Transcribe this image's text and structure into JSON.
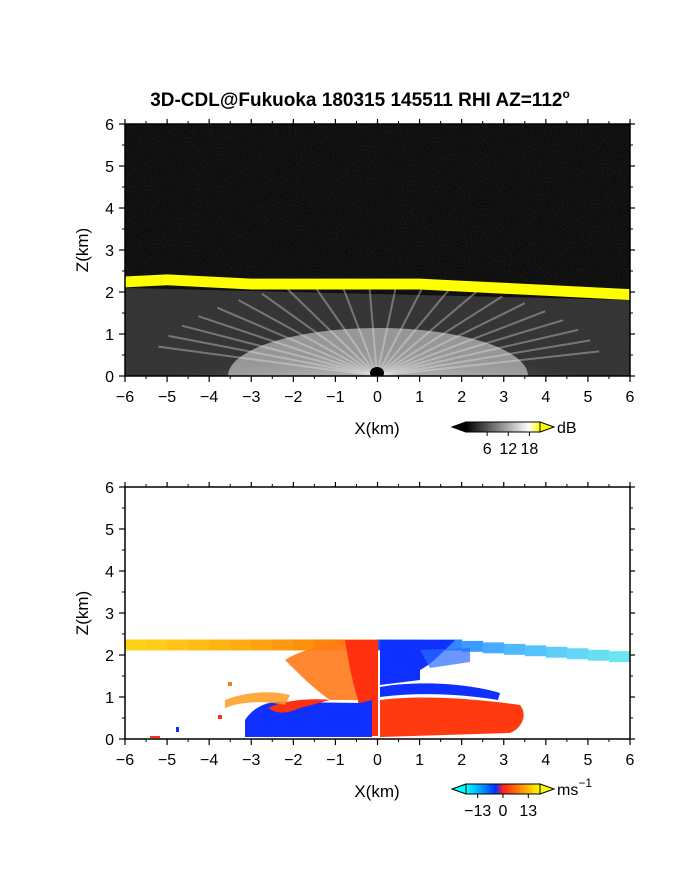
{
  "title": "3D-CDL@Fukuoka 180315 145511 RHI AZ=112",
  "title_superscript": "o",
  "chart_data": [
    {
      "panel": "reflectivity",
      "type": "heatmap",
      "xlabel": "X(km)",
      "ylabel": "Z(km)",
      "xlim": [
        -6,
        6
      ],
      "ylim": [
        0,
        6
      ],
      "x_ticks": [
        "−6",
        "−5",
        "−4",
        "−3",
        "−2",
        "−1",
        "0",
        "1",
        "2",
        "3",
        "4",
        "5",
        "6"
      ],
      "y_ticks": [
        "0",
        "1",
        "2",
        "3",
        "4",
        "5",
        "6"
      ],
      "colorbar": {
        "unit": "dB",
        "ticks": [
          "6",
          "12",
          "18"
        ],
        "range": [
          0,
          21
        ]
      },
      "features": {
        "cloud_base_height_km": [
          {
            "x": -6,
            "z": 2.25
          },
          {
            "x": -5,
            "z": 2.3
          },
          {
            "x": -4,
            "z": 2.25
          },
          {
            "x": -3,
            "z": 2.2
          },
          {
            "x": -2,
            "z": 2.2
          },
          {
            "x": -1,
            "z": 2.2
          },
          {
            "x": 0,
            "z": 2.2
          },
          {
            "x": 1,
            "z": 2.2
          },
          {
            "x": 2,
            "z": 2.15
          },
          {
            "x": 3,
            "z": 2.1
          },
          {
            "x": 4,
            "z": 2.05
          },
          {
            "x": 5,
            "z": 2.0
          },
          {
            "x": 6,
            "z": 1.95
          }
        ],
        "boundary_layer_top_km": 1.0
      }
    },
    {
      "panel": "velocity",
      "type": "heatmap",
      "xlabel": "X(km)",
      "ylabel": "Z(km)",
      "xlim": [
        -6,
        6
      ],
      "ylim": [
        0,
        6
      ],
      "x_ticks": [
        "−6",
        "−5",
        "−4",
        "−3",
        "−2",
        "−1",
        "0",
        "1",
        "2",
        "3",
        "4",
        "5",
        "6"
      ],
      "y_ticks": [
        "0",
        "1",
        "2",
        "3",
        "4",
        "5",
        "6"
      ],
      "colorbar": {
        "unit": "ms",
        "unit_superscript": "−1",
        "ticks": [
          "−13",
          "0",
          "13"
        ],
        "range": [
          -19,
          19
        ]
      }
    }
  ]
}
